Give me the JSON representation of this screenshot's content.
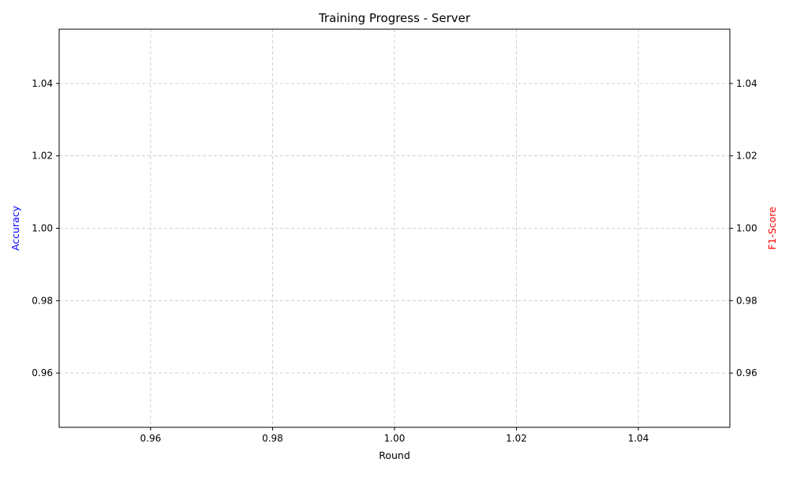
{
  "chart_data": {
    "type": "line",
    "title": "Training Progress - Server",
    "xlabel": "Round",
    "ylabel_left": "Accuracy",
    "ylabel_right": "F1-Score",
    "xlim": [
      0.945,
      1.055
    ],
    "ylim_left": [
      0.945,
      1.055
    ],
    "ylim_right": [
      0.945,
      1.055
    ],
    "x_ticks": [
      0.96,
      0.98,
      1.0,
      1.02,
      1.04
    ],
    "x_tick_labels": [
      "0.96",
      "0.98",
      "1.00",
      "1.02",
      "1.04"
    ],
    "y_ticks_left": [
      0.96,
      0.98,
      1.0,
      1.02,
      1.04
    ],
    "y_tick_labels_left": [
      "0.96",
      "0.98",
      "1.00",
      "1.02",
      "1.04"
    ],
    "y_ticks_right": [
      0.96,
      0.98,
      1.0,
      1.02,
      1.04
    ],
    "y_tick_labels_right": [
      "0.96",
      "0.98",
      "1.00",
      "1.02",
      "1.04"
    ],
    "grid": true,
    "grid_style": "dashed",
    "colors": {
      "left_axis_label": "#0000ff",
      "right_axis_label": "#ff0000",
      "grid": "#b0b0b0",
      "axes": "#000000",
      "text": "#000000"
    },
    "series": []
  }
}
